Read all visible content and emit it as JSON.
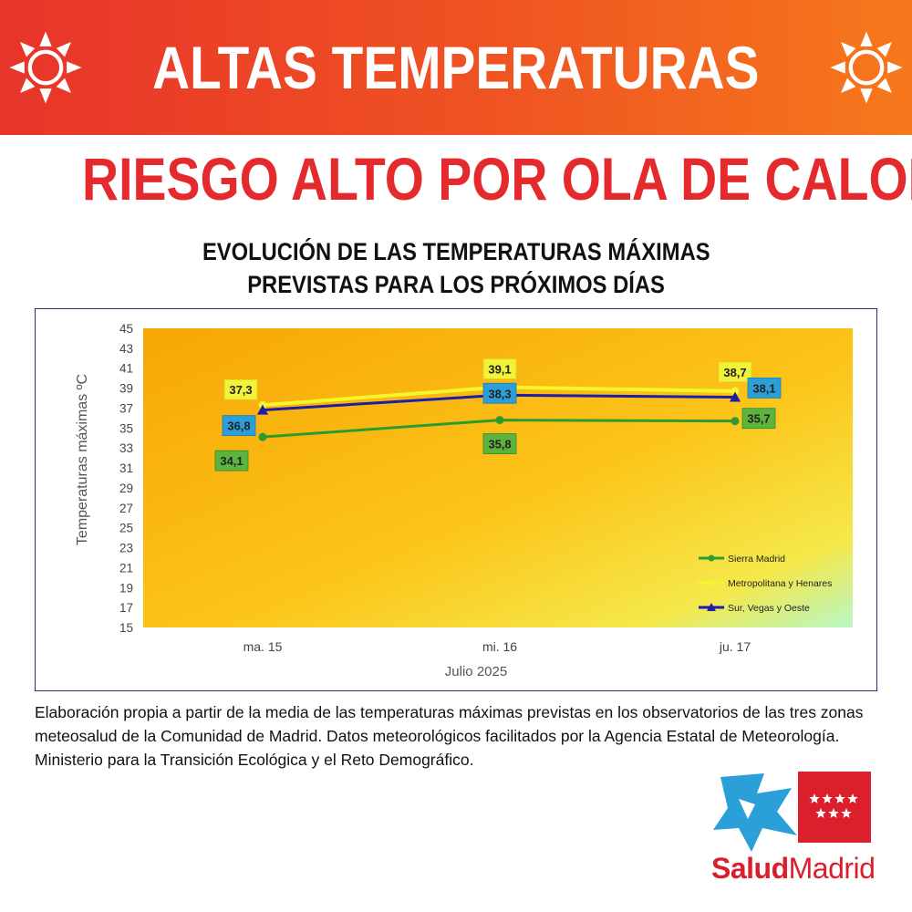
{
  "banner": {
    "title": "ALTAS TEMPERATURAS"
  },
  "subhead": "RIESGO ALTO POR OLA DE CALOR",
  "chart_data": {
    "type": "line",
    "title": [
      "EVOLUCIÓN DE LAS TEMPERATURAS MÁXIMAS",
      "PREVISTAS PARA LOS PRÓXIMOS DÍAS"
    ],
    "xlabel": "Julio 2025",
    "ylabel": "Temperaturas máximas ºC",
    "categories": [
      "ma. 15",
      "mi. 16",
      "ju. 17"
    ],
    "ylim": [
      15,
      45
    ],
    "yticks": [
      15,
      17,
      19,
      21,
      23,
      25,
      27,
      29,
      31,
      33,
      35,
      37,
      39,
      41,
      43,
      45
    ],
    "legend_position": "bottom-right",
    "series": [
      {
        "name": "Sierra Madrid",
        "values": [
          34.1,
          35.8,
          35.7
        ],
        "labels": [
          "34,1",
          "35,8",
          "35,7"
        ],
        "color": "#2e9b2e",
        "label_bg": "#5cb33e",
        "marker": "circle"
      },
      {
        "name": "Metropolitana y Henares",
        "values": [
          37.3,
          39.1,
          38.7
        ],
        "labels": [
          "37,3",
          "39,1",
          "38,7"
        ],
        "color": "#f4f52a",
        "label_bg": "#f2f23a",
        "marker": "circle"
      },
      {
        "name": "Sur, Vegas y Oeste",
        "values": [
          36.8,
          38.3,
          38.1
        ],
        "labels": [
          "36,8",
          "38,3",
          "38,1"
        ],
        "color": "#1d1da8",
        "label_bg": "#2c9fd8",
        "marker": "triangle"
      }
    ]
  },
  "footnote": "Elaboración propia a partir de la media de las temperaturas máximas previstas en los observatorios de las tres zonas meteosalud de la Comunidad de Madrid. Datos meteorológicos facilitados por la Agencia Estatal de Meteorología. Ministerio para la Transición Ecológica y el Reto Demográfico.",
  "logo": {
    "part1": "Salud",
    "part2": "Madrid",
    "colors": {
      "blue": "#2a9fd8",
      "red": "#dc1f2d"
    }
  },
  "icons": [
    "sun-icon",
    "sun-icon"
  ]
}
